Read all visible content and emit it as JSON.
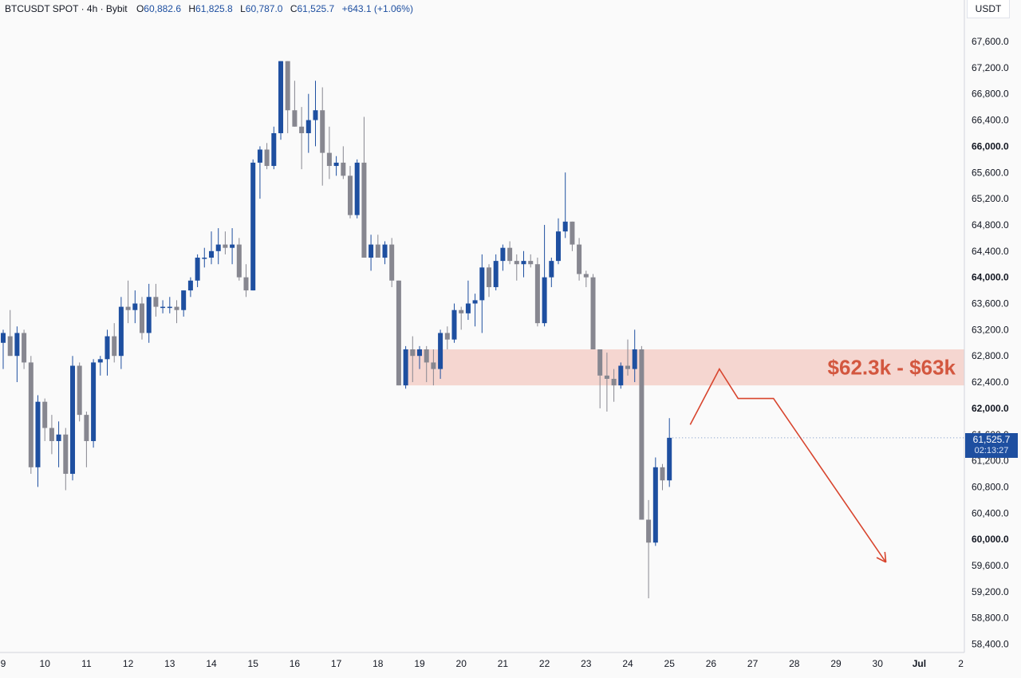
{
  "header": {
    "symbol": "BTCUSDT SPOT · 4h · Bybit",
    "open_label": "O",
    "open": "60,882.6",
    "high_label": "H",
    "high": "61,825.8",
    "low_label": "L",
    "low": "60,787.0",
    "close_label": "C",
    "close": "61,525.7",
    "change": "+643.1 (+1.06%)"
  },
  "axis": {
    "unit": "USDT"
  },
  "last_price": {
    "value": "61,525.7",
    "countdown": "02:13:27"
  },
  "colors": {
    "up": "#1e4fa0",
    "down": "#878790",
    "zone_fill": "#f3cfc8",
    "zone_text": "#d3573f",
    "arrow": "#d8452e",
    "bg": "#fafafa"
  },
  "chart_data": {
    "type": "candlestick",
    "title": "BTCUSDT SPOT · 4h · Bybit",
    "ylim": [
      58200,
      67900
    ],
    "y_ticks": [
      "58,400.0",
      "58,800.0",
      "59,200.0",
      "59,600.0",
      "60,000.0",
      "60,400.0",
      "60,800.0",
      "61,200.0",
      "61,600.0",
      "62,000.0",
      "62,400.0",
      "62,800.0",
      "63,200.0",
      "63,600.0",
      "64,000.0",
      "64,400.0",
      "64,800.0",
      "65,200.0",
      "65,600.0",
      "66,000.0",
      "66,400.0",
      "66,800.0",
      "67,200.0",
      "67,600.0"
    ],
    "x_labels": [
      "9",
      "10",
      "11",
      "12",
      "13",
      "14",
      "15",
      "16",
      "17",
      "18",
      "19",
      "20",
      "21",
      "22",
      "23",
      "24",
      "25",
      "26",
      "27",
      "28",
      "29",
      "30",
      "Jul",
      "2"
    ],
    "x_label_dates": [
      9,
      10,
      11,
      12,
      13,
      14,
      15,
      16,
      17,
      18,
      19,
      20,
      21,
      22,
      23,
      24,
      25,
      26,
      27,
      28,
      29,
      30,
      31,
      32
    ],
    "candles_x_day": [
      9.0,
      9.167,
      9.333,
      9.5,
      9.667,
      9.833,
      10.0,
      10.167,
      10.333,
      10.5,
      10.667,
      10.833,
      11.0,
      11.167,
      11.333,
      11.5,
      11.667,
      11.833,
      12.0,
      12.167,
      12.333,
      12.5,
      12.667,
      12.833,
      13.0,
      13.167,
      13.333,
      13.5,
      13.667,
      13.833,
      14.0,
      14.167,
      14.333,
      14.5,
      14.667,
      14.833,
      15.0,
      15.167,
      15.333,
      15.5,
      15.667,
      15.833,
      16.0,
      16.167,
      16.333,
      16.5,
      16.667,
      16.833,
      17.0,
      17.167,
      17.333,
      17.5,
      17.667,
      17.833,
      18.0,
      18.167,
      18.333,
      18.5,
      18.667,
      18.833,
      19.0,
      19.167,
      19.333,
      19.5,
      19.667,
      19.833,
      20.0,
      20.167,
      20.333,
      20.5,
      20.667,
      20.833,
      21.0,
      21.167,
      21.333,
      21.5,
      21.667,
      21.833,
      22.0,
      22.167,
      22.333,
      22.5,
      22.667,
      22.833,
      23.0,
      23.167,
      23.333,
      23.5,
      23.667,
      23.833,
      24.0,
      24.167,
      24.333,
      24.5,
      24.667,
      24.833,
      25.0
    ],
    "candles": [
      {
        "o": 63000,
        "h": 63200,
        "l": 62600,
        "c": 63150
      },
      {
        "o": 63100,
        "h": 63500,
        "l": 62800,
        "c": 62800
      },
      {
        "o": 62800,
        "h": 63250,
        "l": 62400,
        "c": 63150
      },
      {
        "o": 63150,
        "h": 63200,
        "l": 62600,
        "c": 62700
      },
      {
        "o": 62700,
        "h": 62800,
        "l": 61000,
        "c": 61100
      },
      {
        "o": 61100,
        "h": 62200,
        "l": 60800,
        "c": 62100
      },
      {
        "o": 62100,
        "h": 62150,
        "l": 61500,
        "c": 61700
      },
      {
        "o": 61700,
        "h": 61900,
        "l": 61300,
        "c": 61500
      },
      {
        "o": 61500,
        "h": 61800,
        "l": 61100,
        "c": 61600
      },
      {
        "o": 61600,
        "h": 61700,
        "l": 60750,
        "c": 61000
      },
      {
        "o": 61000,
        "h": 62800,
        "l": 60900,
        "c": 62650
      },
      {
        "o": 62650,
        "h": 62700,
        "l": 61800,
        "c": 61900
      },
      {
        "o": 61900,
        "h": 61950,
        "l": 61100,
        "c": 61500
      },
      {
        "o": 61500,
        "h": 62750,
        "l": 61400,
        "c": 62700
      },
      {
        "o": 62700,
        "h": 62800,
        "l": 62500,
        "c": 62750
      },
      {
        "o": 62750,
        "h": 63200,
        "l": 62500,
        "c": 63100
      },
      {
        "o": 63100,
        "h": 63300,
        "l": 62700,
        "c": 62800
      },
      {
        "o": 62800,
        "h": 63700,
        "l": 62600,
        "c": 63550
      },
      {
        "o": 63550,
        "h": 63950,
        "l": 63300,
        "c": 63500
      },
      {
        "o": 63500,
        "h": 63800,
        "l": 63300,
        "c": 63600
      },
      {
        "o": 63600,
        "h": 63700,
        "l": 63050,
        "c": 63150
      },
      {
        "o": 63150,
        "h": 63900,
        "l": 63000,
        "c": 63700
      },
      {
        "o": 63700,
        "h": 63900,
        "l": 63400,
        "c": 63550
      },
      {
        "o": 63550,
        "h": 63650,
        "l": 63450,
        "c": 63550
      },
      {
        "o": 63550,
        "h": 63700,
        "l": 63450,
        "c": 63550
      },
      {
        "o": 63550,
        "h": 63650,
        "l": 63300,
        "c": 63500
      },
      {
        "o": 63500,
        "h": 63800,
        "l": 63400,
        "c": 63800
      },
      {
        "o": 63800,
        "h": 64000,
        "l": 63700,
        "c": 63950
      },
      {
        "o": 63950,
        "h": 64350,
        "l": 63850,
        "c": 64300
      },
      {
        "o": 64300,
        "h": 64450,
        "l": 64150,
        "c": 64300
      },
      {
        "o": 64300,
        "h": 64700,
        "l": 64200,
        "c": 64400
      },
      {
        "o": 64400,
        "h": 64750,
        "l": 64200,
        "c": 64500
      },
      {
        "o": 64500,
        "h": 64700,
        "l": 64350,
        "c": 64450
      },
      {
        "o": 64450,
        "h": 64750,
        "l": 64200,
        "c": 64500
      },
      {
        "o": 64500,
        "h": 64600,
        "l": 63950,
        "c": 64000
      },
      {
        "o": 64000,
        "h": 64200,
        "l": 63700,
        "c": 63800
      },
      {
        "o": 63800,
        "h": 65800,
        "l": 63800,
        "c": 65750
      },
      {
        "o": 65750,
        "h": 66000,
        "l": 65200,
        "c": 65950
      },
      {
        "o": 65950,
        "h": 66050,
        "l": 65650,
        "c": 65700
      },
      {
        "o": 65700,
        "h": 66300,
        "l": 65650,
        "c": 66200
      },
      {
        "o": 66200,
        "h": 67300,
        "l": 66100,
        "c": 67300
      },
      {
        "o": 67300,
        "h": 67300,
        "l": 66200,
        "c": 66550
      },
      {
        "o": 66550,
        "h": 67000,
        "l": 66300,
        "c": 66300
      },
      {
        "o": 66300,
        "h": 66600,
        "l": 65650,
        "c": 66200
      },
      {
        "o": 66200,
        "h": 66800,
        "l": 65900,
        "c": 66400
      },
      {
        "o": 66400,
        "h": 67000,
        "l": 66000,
        "c": 66550
      },
      {
        "o": 66550,
        "h": 66900,
        "l": 65400,
        "c": 65900
      },
      {
        "o": 65900,
        "h": 66300,
        "l": 65500,
        "c": 65700
      },
      {
        "o": 65700,
        "h": 65850,
        "l": 65550,
        "c": 65750
      },
      {
        "o": 65750,
        "h": 66000,
        "l": 65500,
        "c": 65550
      },
      {
        "o": 65550,
        "h": 65700,
        "l": 64900,
        "c": 64950
      },
      {
        "o": 64950,
        "h": 65800,
        "l": 64900,
        "c": 65750
      },
      {
        "o": 65750,
        "h": 66450,
        "l": 64300,
        "c": 64300
      },
      {
        "o": 64300,
        "h": 64650,
        "l": 64100,
        "c": 64500
      },
      {
        "o": 64500,
        "h": 64650,
        "l": 64350,
        "c": 64300
      },
      {
        "o": 64300,
        "h": 64550,
        "l": 64200,
        "c": 64500
      },
      {
        "o": 64500,
        "h": 64600,
        "l": 63850,
        "c": 63950
      },
      {
        "o": 63950,
        "h": 63950,
        "l": 62350,
        "c": 62350
      },
      {
        "o": 62350,
        "h": 62950,
        "l": 62300,
        "c": 62900
      },
      {
        "o": 62900,
        "h": 63100,
        "l": 62400,
        "c": 62800
      },
      {
        "o": 62800,
        "h": 62950,
        "l": 62600,
        "c": 62900
      },
      {
        "o": 62900,
        "h": 62950,
        "l": 62400,
        "c": 62700
      },
      {
        "o": 62700,
        "h": 62900,
        "l": 62350,
        "c": 62600
      },
      {
        "o": 62600,
        "h": 63200,
        "l": 62450,
        "c": 63150
      },
      {
        "o": 63150,
        "h": 63250,
        "l": 62900,
        "c": 63050
      },
      {
        "o": 63050,
        "h": 63600,
        "l": 63000,
        "c": 63500
      },
      {
        "o": 63500,
        "h": 63550,
        "l": 63200,
        "c": 63450
      },
      {
        "o": 63450,
        "h": 63950,
        "l": 63350,
        "c": 63600
      },
      {
        "o": 63600,
        "h": 63750,
        "l": 63250,
        "c": 63650
      },
      {
        "o": 63650,
        "h": 64350,
        "l": 63150,
        "c": 64150
      },
      {
        "o": 64150,
        "h": 64200,
        "l": 63700,
        "c": 63850
      },
      {
        "o": 63850,
        "h": 64350,
        "l": 63800,
        "c": 64250
      },
      {
        "o": 64250,
        "h": 64500,
        "l": 64100,
        "c": 64450
      },
      {
        "o": 64450,
        "h": 64550,
        "l": 64200,
        "c": 64250
      },
      {
        "o": 64250,
        "h": 64350,
        "l": 63950,
        "c": 64200
      },
      {
        "o": 64200,
        "h": 64400,
        "l": 64000,
        "c": 64250
      },
      {
        "o": 64250,
        "h": 64350,
        "l": 64150,
        "c": 64200
      },
      {
        "o": 64200,
        "h": 64300,
        "l": 63250,
        "c": 63300
      },
      {
        "o": 63300,
        "h": 64800,
        "l": 63250,
        "c": 64000
      },
      {
        "o": 64000,
        "h": 64300,
        "l": 63850,
        "c": 64250
      },
      {
        "o": 64250,
        "h": 64900,
        "l": 64200,
        "c": 64700
      },
      {
        "o": 64700,
        "h": 65600,
        "l": 64600,
        "c": 64850
      },
      {
        "o": 64850,
        "h": 64850,
        "l": 64400,
        "c": 64500
      },
      {
        "o": 64500,
        "h": 64600,
        "l": 63950,
        "c": 64050
      },
      {
        "o": 64050,
        "h": 64100,
        "l": 63850,
        "c": 64000
      },
      {
        "o": 64000,
        "h": 64050,
        "l": 62900,
        "c": 62900
      },
      {
        "o": 62900,
        "h": 62900,
        "l": 62000,
        "c": 62500
      },
      {
        "o": 62500,
        "h": 62850,
        "l": 61950,
        "c": 62450
      },
      {
        "o": 62450,
        "h": 62600,
        "l": 62100,
        "c": 62350
      },
      {
        "o": 62350,
        "h": 62700,
        "l": 62300,
        "c": 62650
      },
      {
        "o": 62650,
        "h": 63050,
        "l": 62500,
        "c": 62600
      },
      {
        "o": 62600,
        "h": 63200,
        "l": 62400,
        "c": 62900
      },
      {
        "o": 62900,
        "h": 62950,
        "l": 60300,
        "c": 60300
      },
      {
        "o": 60300,
        "h": 60600,
        "l": 59100,
        "c": 59950
      },
      {
        "o": 59950,
        "h": 61250,
        "l": 59900,
        "c": 61100
      },
      {
        "o": 61100,
        "h": 61150,
        "l": 60750,
        "c": 60900
      },
      {
        "o": 60900,
        "h": 61850,
        "l": 60800,
        "c": 61550
      }
    ],
    "zone": {
      "low": 62350,
      "high": 62900,
      "start_day": 18.667,
      "label": "$62.3k - $63k"
    },
    "projection_path": [
      {
        "day": 25.5,
        "price": 61750
      },
      {
        "day": 26.2,
        "price": 62600
      },
      {
        "day": 26.65,
        "price": 62150
      },
      {
        "day": 27.5,
        "price": 62150
      },
      {
        "day": 30.2,
        "price": 59650
      }
    ]
  }
}
